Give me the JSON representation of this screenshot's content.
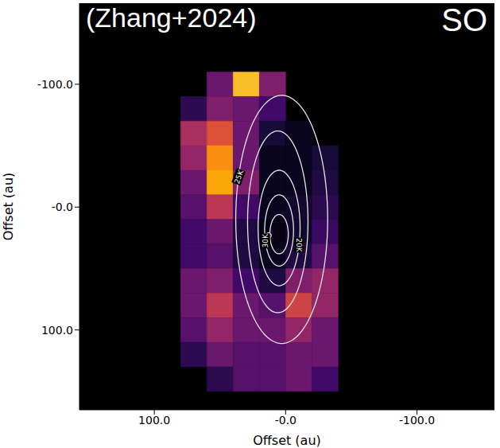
{
  "chart_data": {
    "type": "heatmap",
    "title": "(Zhang+2024)",
    "subtitle": "SO",
    "x_label": "Offset (au)",
    "y_label": "Offset (au)",
    "xlim": [
      157,
      -159
    ],
    "ylim": [
      165,
      -166
    ],
    "xticks": [
      {
        "value": 100,
        "label": "100.0"
      },
      {
        "value": 0,
        "label": "-0.0"
      },
      {
        "value": -100,
        "label": "-100.0"
      }
    ],
    "yticks": [
      {
        "value": -100,
        "label": "-100.0"
      },
      {
        "value": 0,
        "label": "-0.0"
      },
      {
        "value": 100,
        "label": "100.0"
      }
    ],
    "x": [
      70,
      50,
      30,
      10,
      -10,
      -30
    ],
    "y": [
      -100,
      -80,
      -60,
      -40,
      -20,
      0,
      20,
      40,
      60,
      80,
      100,
      120,
      140
    ],
    "cells": [
      [
        null,
        0.3,
        0.85,
        0.35,
        null,
        null
      ],
      [
        0.15,
        0.35,
        0.3,
        0.2,
        null,
        null
      ],
      [
        0.45,
        0.6,
        0.3,
        0.1,
        0.05,
        null
      ],
      [
        0.4,
        0.75,
        0.3,
        0.05,
        0.05,
        0.1
      ],
      [
        0.3,
        0.8,
        0.35,
        0.05,
        0.05,
        0.12
      ],
      [
        0.25,
        0.5,
        0.2,
        0.05,
        0.08,
        0.15
      ],
      [
        0.2,
        0.3,
        0.12,
        0.03,
        0.08,
        0.18
      ],
      [
        0.2,
        0.25,
        0.12,
        0.05,
        0.12,
        0.25
      ],
      [
        0.3,
        0.35,
        0.2,
        0.12,
        0.35,
        0.4
      ],
      [
        0.3,
        0.5,
        0.3,
        0.25,
        0.55,
        0.4
      ],
      [
        0.25,
        0.4,
        0.3,
        0.3,
        0.4,
        0.3
      ],
      [
        0.15,
        0.3,
        0.25,
        0.25,
        0.3,
        0.3
      ],
      [
        null,
        0.15,
        0.25,
        0.25,
        0.3,
        0.2
      ]
    ],
    "contours": [
      {
        "center": [
          3,
          10
        ],
        "semi_axes": [
          35,
          101
        ],
        "label": "25K"
      },
      {
        "center": [
          6,
          12
        ],
        "semi_axes": [
          23,
          74
        ]
      },
      {
        "center": [
          5,
          17
        ],
        "semi_axes": [
          16,
          47
        ],
        "label": "20K"
      },
      {
        "center": [
          5,
          19
        ],
        "semi_axes": [
          11,
          29
        ],
        "label": "30K"
      },
      {
        "center": [
          5,
          22
        ],
        "semi_axes": [
          7,
          16
        ]
      },
      {
        "center": [
          13,
          23
        ],
        "semi_axes": [
          2,
          2
        ]
      }
    ]
  }
}
